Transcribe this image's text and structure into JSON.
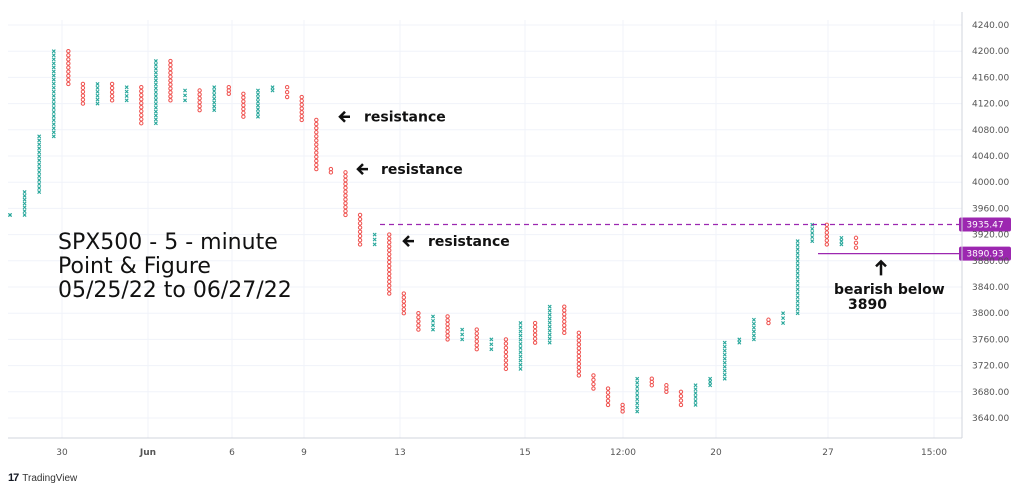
{
  "chart_data": {
    "type": "point-and-figure",
    "title_lines": [
      "SPX500 - 5 - minute",
      "Point & Figure",
      "05/25/22 to 06/27/22"
    ],
    "y_ticks": [
      "4240.00",
      "4200.00",
      "4160.00",
      "4120.00",
      "4080.00",
      "4040.00",
      "4000.00",
      "3960.00",
      "3920.00",
      "3880.00",
      "3840.00",
      "3800.00",
      "3760.00",
      "3720.00",
      "3680.00",
      "3640.00"
    ],
    "ylim": [
      3620,
      4245
    ],
    "x_ticks": [
      "30",
      "Jun",
      "6",
      "9",
      "13",
      "15",
      "12:00",
      "20",
      "27",
      "15:00"
    ],
    "series": [
      {
        "name": "",
        "values": [
          3950,
          3985,
          4070,
          4200,
          4150,
          4120,
          4150,
          4125,
          4145,
          4090,
          4185,
          4125,
          4140,
          4110,
          4145,
          4135,
          4100,
          4140,
          4145,
          4130,
          4095,
          4020,
          4015,
          3950,
          3905,
          3920,
          3830,
          3800,
          3775,
          3795,
          3760,
          3775,
          3745,
          3760,
          3715,
          3785,
          3755,
          3810,
          3770,
          3705,
          3685,
          3660,
          3650,
          3700,
          3690,
          3680,
          3660,
          3690,
          3700,
          3755,
          3760,
          3790,
          3785,
          3800,
          3910,
          3935,
          3905,
          3915,
          3900
        ]
      }
    ],
    "price_labels": [
      {
        "value": 3935.47,
        "text": "3935.47",
        "color": "#9c27b0",
        "style": "dashed"
      },
      {
        "value": 3890.93,
        "text": "3890.93",
        "color": "#9c27b0",
        "style": "solid"
      }
    ],
    "annotations": [
      {
        "text": "resistance",
        "price": 4100
      },
      {
        "text": "resistance",
        "price": 4020
      },
      {
        "text": "resistance",
        "price": 3910
      },
      {
        "text": "bearish below",
        "price": 3845
      },
      {
        "text": "3890",
        "price": 3825
      }
    ],
    "colors": {
      "up": "#26a69a",
      "down": "#ef5350",
      "level": "#9c27b0",
      "grid": "#f0f3fa"
    }
  },
  "branding": {
    "logo_label": "TradingView"
  }
}
